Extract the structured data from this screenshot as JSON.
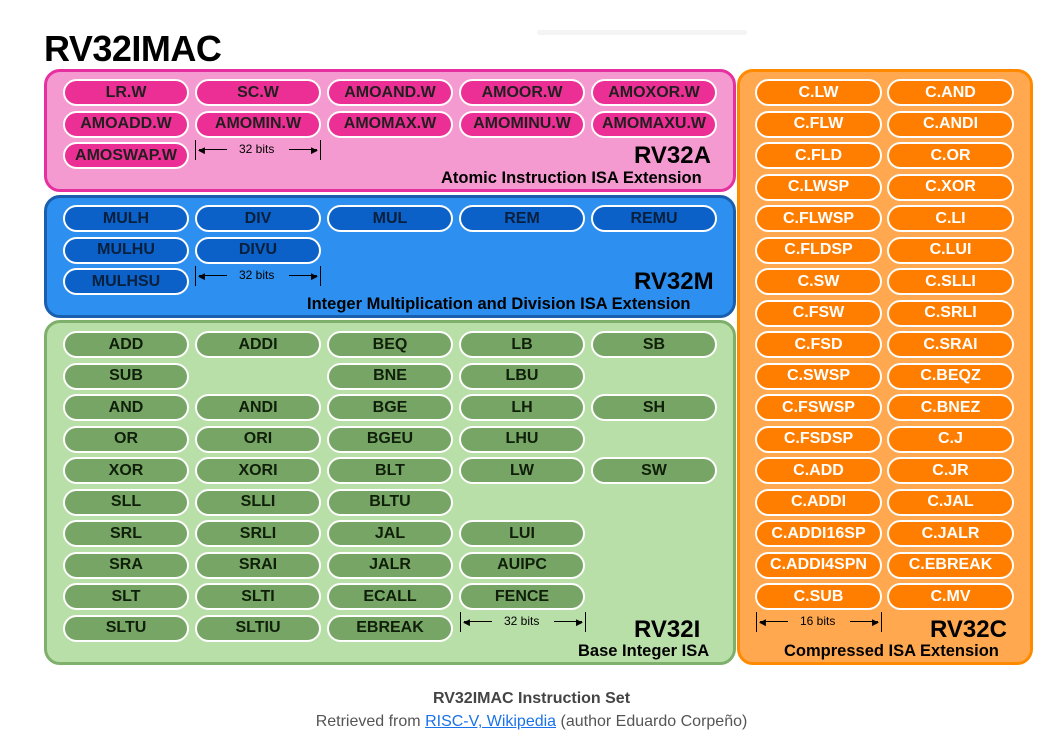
{
  "title": "RV32IMAC",
  "panels": {
    "A": {
      "name": "RV32A",
      "subtitle": "Atomic Instruction ISA Extension",
      "bits": "32 bits",
      "colors": {
        "panel": "#f59ad0",
        "pill": "#ec2f95"
      },
      "instructions": [
        [
          "LR.W",
          "SC.W",
          "AMOAND.W",
          "AMOOR.W",
          "AMOXOR.W"
        ],
        [
          "AMOADD.W",
          "AMOMIN.W",
          "AMOMAX.W",
          "AMOMINU.W",
          "AMOMAXU.W"
        ],
        [
          "AMOSWAP.W",
          "",
          "",
          "",
          ""
        ]
      ]
    },
    "M": {
      "name": "RV32M",
      "subtitle": "Integer Multiplication and Division ISA Extension",
      "bits": "32 bits",
      "colors": {
        "panel": "#2d8ff0",
        "pill": "#0b61c7"
      },
      "instructions": [
        [
          "MULH",
          "DIV",
          "MUL",
          "REM",
          "REMU"
        ],
        [
          "MULHU",
          "DIVU",
          "",
          "",
          ""
        ],
        [
          "MULHSU",
          "",
          "",
          "",
          ""
        ]
      ]
    },
    "I": {
      "name": "RV32I",
      "subtitle": "Base Integer ISA",
      "bits": "32 bits",
      "colors": {
        "panel": "#b9dfa8",
        "pill": "#77a565"
      },
      "instructions": [
        [
          "ADD",
          "ADDI",
          "BEQ",
          "LB",
          "SB"
        ],
        [
          "SUB",
          "",
          "BNE",
          "LBU",
          ""
        ],
        [
          "AND",
          "ANDI",
          "BGE",
          "LH",
          "SH"
        ],
        [
          "OR",
          "ORI",
          "BGEU",
          "LHU",
          ""
        ],
        [
          "XOR",
          "XORI",
          "BLT",
          "LW",
          "SW"
        ],
        [
          "SLL",
          "SLLI",
          "BLTU",
          "",
          ""
        ],
        [
          "SRL",
          "SRLI",
          "JAL",
          "LUI",
          ""
        ],
        [
          "SRA",
          "SRAI",
          "JALR",
          "AUIPC",
          ""
        ],
        [
          "SLT",
          "SLTI",
          "ECALL",
          "FENCE",
          ""
        ],
        [
          "SLTU",
          "SLTIU",
          "EBREAK",
          "",
          ""
        ]
      ]
    },
    "C": {
      "name": "RV32C",
      "subtitle": "Compressed ISA Extension",
      "bits": "16 bits",
      "colors": {
        "panel": "#ffa84f",
        "pill": "#ff7e00"
      },
      "instructions": [
        [
          "C.LW",
          "C.AND"
        ],
        [
          "C.FLW",
          "C.ANDI"
        ],
        [
          "C.FLD",
          "C.OR"
        ],
        [
          "C.LWSP",
          "C.XOR"
        ],
        [
          "C.FLWSP",
          "C.LI"
        ],
        [
          "C.FLDSP",
          "C.LUI"
        ],
        [
          "C.SW",
          "C.SLLI"
        ],
        [
          "C.FSW",
          "C.SRLI"
        ],
        [
          "C.FSD",
          "C.SRAI"
        ],
        [
          "C.SWSP",
          "C.BEQZ"
        ],
        [
          "C.FSWSP",
          "C.BNEZ"
        ],
        [
          "C.FSDSP",
          "C.J"
        ],
        [
          "C.ADD",
          "C.JR"
        ],
        [
          "C.ADDI",
          "C.JAL"
        ],
        [
          "C.ADDI16SP",
          "C.JALR"
        ],
        [
          "C.ADDI4SPN",
          "C.EBREAK"
        ],
        [
          "C.SUB",
          "C.MV"
        ]
      ]
    }
  },
  "caption": "RV32IMAC Instruction Set",
  "credit": {
    "prefix": "Retrieved from",
    "link_text": "RISC-V, Wikipedia",
    "suffix": "(author Eduardo Corpeño)"
  }
}
